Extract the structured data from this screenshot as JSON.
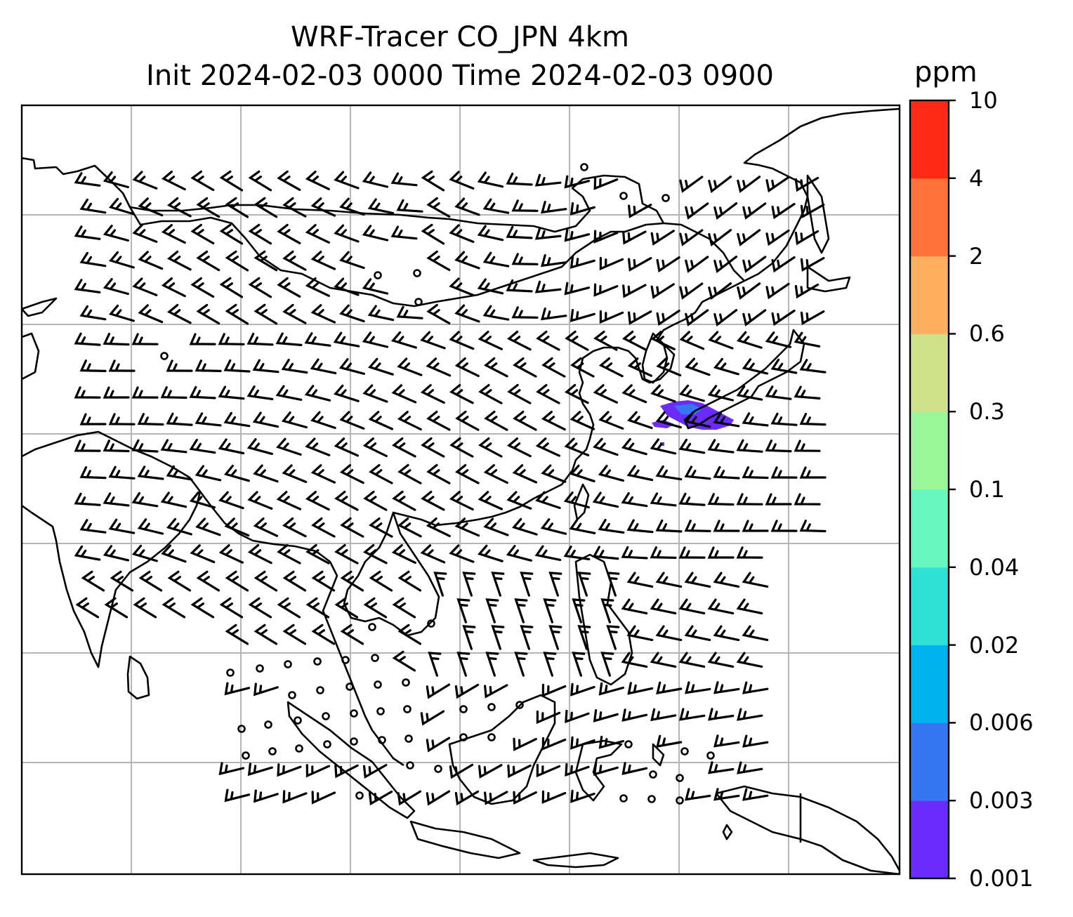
{
  "title_line1": "WRF-Tracer CO_JPN 4km",
  "title_line2": "Init 2024-02-03 0000 Time 2024-02-03 0900",
  "colorbar": {
    "unit": "ppm",
    "levels": [
      "0.001",
      "0.003",
      "0.006",
      "0.02",
      "0.04",
      "0.1",
      "0.3",
      "0.6",
      "2",
      "4",
      "10"
    ],
    "colors": [
      "#6a2bfb",
      "#3576f2",
      "#00b2ee",
      "#2ee0d6",
      "#66f8c0",
      "#99f799",
      "#cfe28a",
      "#ffb05f",
      "#ff733a",
      "#ff2a14"
    ]
  },
  "map": {
    "gridlines": true,
    "features": [
      "coastlines",
      "country-borders",
      "wind-barbs",
      "co-concentration-shading"
    ],
    "co_plume_color": "#6a2bfb"
  }
}
